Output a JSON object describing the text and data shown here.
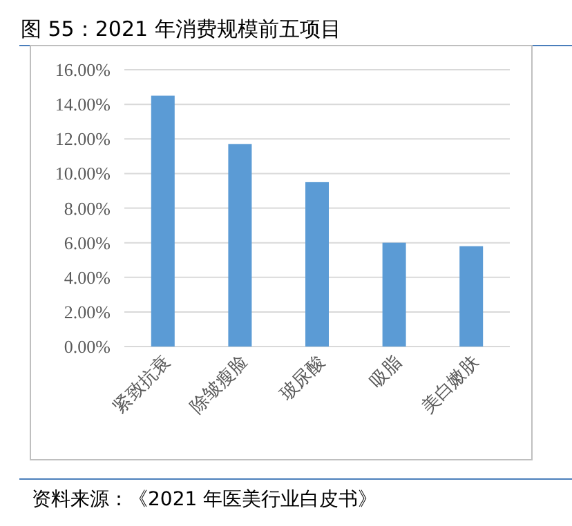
{
  "chart_data": {
    "type": "bar",
    "title": "图 55：2021 年消费规模前五项目",
    "categories": [
      "紧致抗衰",
      "除皱瘦脸",
      "玻尿酸",
      "吸脂",
      "美白嫩肤"
    ],
    "values": [
      14.5,
      11.7,
      9.5,
      6.0,
      5.8
    ],
    "color": "#5b9bd5",
    "ylim": [
      0,
      16
    ],
    "yticks": [
      {
        "value": 0,
        "label": "0.00%"
      },
      {
        "value": 2,
        "label": "2.00%"
      },
      {
        "value": 4,
        "label": "4.00%"
      },
      {
        "value": 6,
        "label": "6.00%"
      },
      {
        "value": 8,
        "label": "8.00%"
      },
      {
        "value": 10,
        "label": "10.00%"
      },
      {
        "value": 12,
        "label": "12.00%"
      },
      {
        "value": 14,
        "label": "14.00%"
      },
      {
        "value": 16,
        "label": "16.00%"
      }
    ],
    "grid": "y",
    "annotations": [
      "资料来源：《2021 年医美行业白皮书》"
    ]
  }
}
